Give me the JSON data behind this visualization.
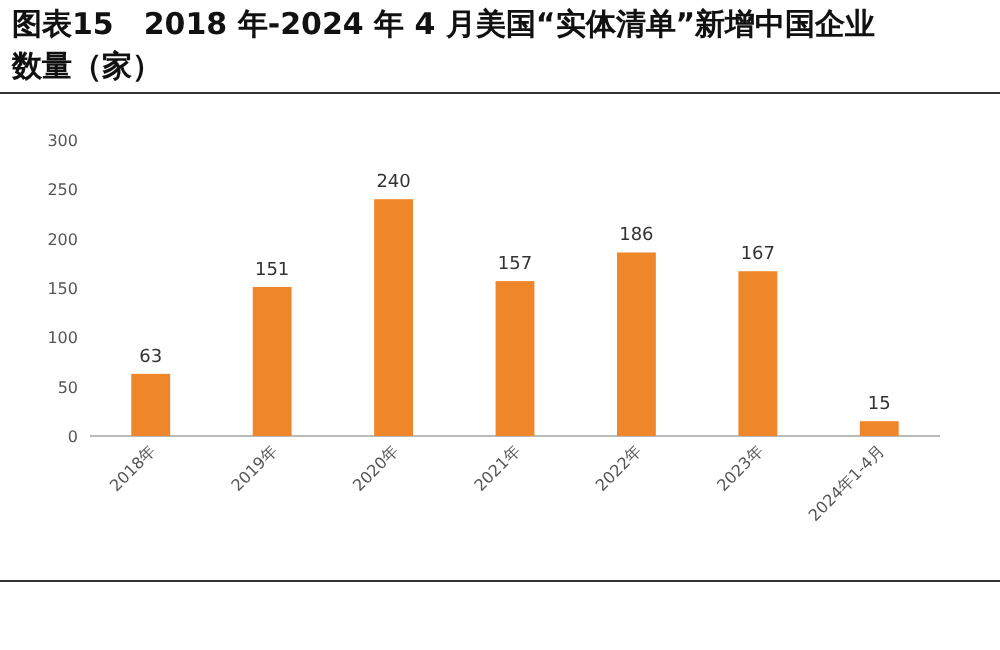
{
  "chart_data": {
    "type": "bar",
    "title": "图表15　2018 年-2024 年 4 月美国“实体清单”新增中国企业数量（家）",
    "categories": [
      "2018年",
      "2019年",
      "2020年",
      "2021年",
      "2022年",
      "2023年",
      "2024年1-4月"
    ],
    "values": [
      63,
      151,
      240,
      157,
      186,
      167,
      15
    ],
    "color": "#f0862a",
    "ylim": [
      0,
      300
    ],
    "yticks": [
      0,
      50,
      100,
      150,
      200,
      250,
      300
    ],
    "data_labels": true
  }
}
